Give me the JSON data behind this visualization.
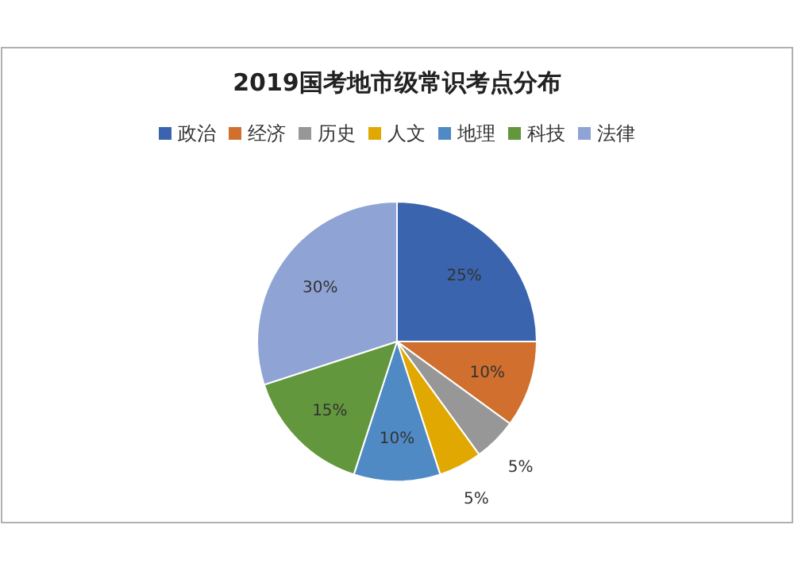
{
  "chart_data": {
    "type": "pie",
    "title": "2019国考地市级常识考点分布",
    "categories": [
      "政治",
      "经济",
      "历史",
      "人文",
      "地理",
      "科技",
      "法律"
    ],
    "values": [
      25,
      10,
      5,
      5,
      10,
      15,
      30
    ],
    "colors": [
      "#3a64ad",
      "#d06f2e",
      "#979797",
      "#e0a800",
      "#508ac4",
      "#62973d",
      "#8fa3d4"
    ],
    "value_labels": [
      "25%",
      "10%",
      "5%",
      "5%",
      "10%",
      "15%",
      "30%"
    ],
    "legend": "top"
  }
}
